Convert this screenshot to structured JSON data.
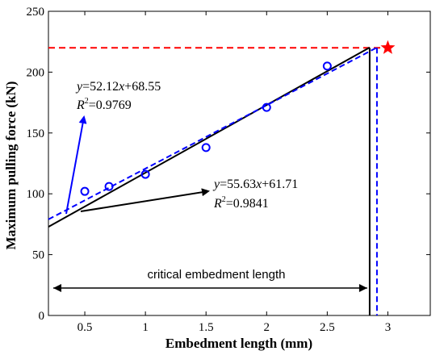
{
  "chart_data": {
    "type": "scatter",
    "title": "",
    "xlabel": "Embedment length (mm)",
    "ylabel": "Maximum pulling force (kN)",
    "xlim": [
      0.2,
      3.35
    ],
    "ylim": [
      0,
      250
    ],
    "x_ticks": [
      "0.5",
      "1",
      "1.5",
      "2",
      "2.5",
      "3"
    ],
    "y_ticks": [
      "0",
      "50",
      "100",
      "150",
      "200",
      "250"
    ],
    "grid": false,
    "series": [
      {
        "marker": "open-circle",
        "color": "#0000ff",
        "points": [
          {
            "x": 0.5,
            "y": 102
          },
          {
            "x": 0.7,
            "y": 106
          },
          {
            "x": 1.0,
            "y": 116
          },
          {
            "x": 1.5,
            "y": 138
          },
          {
            "x": 2.0,
            "y": 171
          },
          {
            "x": 2.5,
            "y": 205
          }
        ]
      },
      {
        "line": "dashed",
        "color": "#0000ff",
        "slope": 52.12,
        "intercept": 68.55,
        "x_range": [
          0.2,
          2.91
        ]
      },
      {
        "line": "solid",
        "color": "#000000",
        "slope": 55.63,
        "intercept": 61.71,
        "x_range": [
          0.2,
          2.85
        ]
      }
    ],
    "star_point": {
      "x": 3.0,
      "y": 220,
      "color": "#ff0000"
    },
    "reference_line": {
      "y": 220,
      "color": "#ff0000",
      "style": "dashed"
    },
    "vertical_lines": [
      {
        "x": 2.85,
        "color": "#000000",
        "style": "solid"
      },
      {
        "x": 2.91,
        "color": "#0000ff",
        "style": "dashed"
      }
    ],
    "annotations": {
      "blue_fit": {
        "eq_y": "y",
        "eq_rest": "=52.12",
        "eq_x": "x",
        "eq_const": "+68.55",
        "r2_r": "R",
        "r2_sup": "2",
        "r2_val": "=0.9769"
      },
      "black_fit": {
        "eq_y": "y",
        "eq_rest": "=55.63",
        "eq_x": "x",
        "eq_const": "+61.71",
        "r2_r": "R",
        "r2_sup": "2",
        "r2_val": "=0.9841"
      },
      "critical_label": "critical embedment length"
    }
  }
}
